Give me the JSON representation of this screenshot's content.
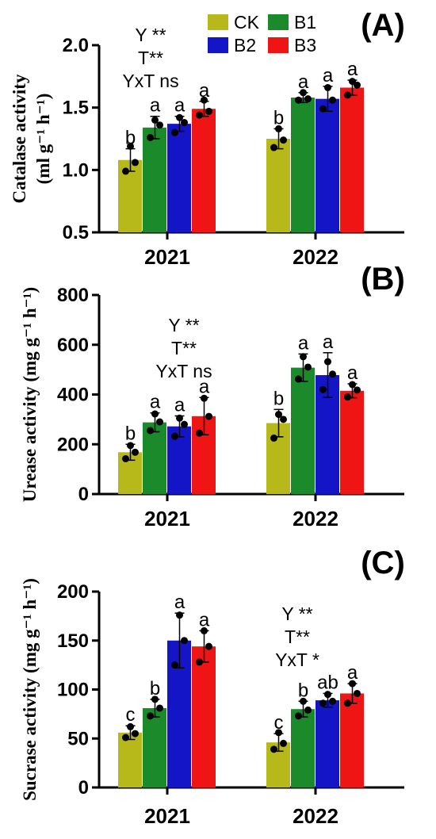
{
  "figure": {
    "legend": [
      {
        "label": "CK",
        "color": "#b7b81a"
      },
      {
        "label": "B1",
        "color": "#1a8a2a"
      },
      {
        "label": "B2",
        "color": "#1515c8"
      },
      {
        "label": "B3",
        "color": "#f01515"
      }
    ]
  },
  "chart_data": [
    {
      "type": "bar",
      "panel_label": "(A)",
      "ylabel": "Catalase activity (ml g⁻¹ h⁻¹)",
      "ylabel_lines": [
        "Catalase activity",
        "(ml g⁻¹ h⁻¹)"
      ],
      "ylim": [
        0.5,
        2.0
      ],
      "yticks": [
        0.5,
        1.0,
        1.5,
        2.0
      ],
      "ytick_labels": [
        "0.5",
        "1.0",
        "1.5",
        "2.0"
      ],
      "categories": [
        "2021",
        "2022"
      ],
      "series": [
        {
          "name": "CK",
          "values": [
            1.08,
            1.25
          ],
          "errors": [
            0.09,
            0.08
          ],
          "letters": [
            "b",
            "b"
          ],
          "points": [
            [
              1.19,
              0.99,
              1.06
            ],
            [
              1.33,
              1.18,
              1.24
            ]
          ]
        },
        {
          "name": "B1",
          "values": [
            1.34,
            1.58
          ],
          "errors": [
            0.09,
            0.04
          ],
          "letters": [
            "a",
            "a"
          ],
          "points": [
            [
              1.4,
              1.26,
              1.36
            ],
            [
              1.62,
              1.56,
              1.57
            ]
          ]
        },
        {
          "name": "B2",
          "values": [
            1.37,
            1.57
          ],
          "errors": [
            0.06,
            0.1
          ],
          "letters": [
            "a",
            "a"
          ],
          "points": [
            [
              1.42,
              1.3,
              1.38
            ],
            [
              1.66,
              1.49,
              1.56
            ]
          ]
        },
        {
          "name": "B3",
          "values": [
            1.49,
            1.66
          ],
          "errors": [
            0.06,
            0.06
          ],
          "letters": [
            "a",
            "a"
          ],
          "points": [
            [
              1.56,
              1.44,
              1.47
            ],
            [
              1.71,
              1.6,
              1.68
            ]
          ]
        }
      ],
      "stats": [
        "Y **",
        "T**",
        "YxT ns"
      ],
      "stats_anchor": "left"
    },
    {
      "type": "bar",
      "panel_label": "(B)",
      "ylabel": "Urease activity (mg g⁻¹ h⁻¹)",
      "ylabel_lines": [
        "Urease activity (mg g⁻¹ h⁻¹)"
      ],
      "ylim": [
        0,
        800
      ],
      "yticks": [
        0,
        200,
        400,
        600,
        800
      ],
      "ytick_labels": [
        "0",
        "200",
        "400",
        "600",
        "800"
      ],
      "categories": [
        "2021",
        "2022"
      ],
      "series": [
        {
          "name": "CK",
          "values": [
            168,
            285
          ],
          "errors": [
            32,
            55
          ],
          "letters": [
            "b",
            "b"
          ],
          "points": [
            [
              195,
              142,
              168
            ],
            [
              320,
              225,
              300
            ]
          ]
        },
        {
          "name": "B1",
          "values": [
            288,
            508
          ],
          "errors": [
            38,
            55
          ],
          "letters": [
            "a",
            "a"
          ],
          "points": [
            [
              322,
              255,
              290
            ],
            [
              552,
              462,
              510
            ]
          ]
        },
        {
          "name": "B2",
          "values": [
            272,
            478
          ],
          "errors": [
            42,
            90
          ],
          "letters": [
            "a",
            "a"
          ],
          "points": [
            [
              305,
              232,
              280
            ],
            [
              532,
              420,
              482
            ]
          ]
        },
        {
          "name": "B3",
          "values": [
            313,
            415
          ],
          "errors": [
            75,
            28
          ],
          "letters": [
            "a",
            "a"
          ],
          "points": [
            [
              385,
              245,
              312
            ],
            [
              440,
              390,
              418
            ]
          ]
        }
      ],
      "stats": [
        "Y **",
        "T**",
        "YxT ns"
      ],
      "stats_anchor": "left"
    },
    {
      "type": "bar",
      "panel_label": "(C)",
      "ylabel": "Sucrase activity (mg g⁻¹ h⁻¹)",
      "ylabel_lines": [
        "Sucrase activity (mg g⁻¹ h⁻¹)"
      ],
      "ylim": [
        0,
        200
      ],
      "yticks": [
        0,
        50,
        100,
        150,
        200
      ],
      "ytick_labels": [
        "0",
        "50",
        "100",
        "150",
        "200"
      ],
      "categories": [
        "2021",
        "2022"
      ],
      "series": [
        {
          "name": "CK",
          "values": [
            56,
            46
          ],
          "errors": [
            7,
            9
          ],
          "letters": [
            "c",
            "c"
          ],
          "points": [
            [
              62,
              51,
              55
            ],
            [
              56,
              39,
              45
            ]
          ]
        },
        {
          "name": "B1",
          "values": [
            81,
            80
          ],
          "errors": [
            9,
            8
          ],
          "letters": [
            "b",
            "b"
          ],
          "points": [
            [
              90,
              73,
              81
            ],
            [
              88,
              73,
              79
            ]
          ]
        },
        {
          "name": "B2",
          "values": [
            150,
            89
          ],
          "errors": [
            28,
            7
          ],
          "letters": [
            "a",
            "ab"
          ],
          "points": [
            [
              176,
              125,
              150
            ],
            [
              95,
              86,
              88
            ]
          ]
        },
        {
          "name": "B3",
          "values": [
            144,
            96
          ],
          "errors": [
            16,
            10
          ],
          "letters": [
            "a",
            "a"
          ],
          "points": [
            [
              160,
              128,
              144
            ],
            [
              106,
              86,
              96
            ]
          ]
        }
      ],
      "stats": [
        "Y **",
        "T**",
        "YxT *"
      ],
      "stats_anchor": "right"
    }
  ]
}
